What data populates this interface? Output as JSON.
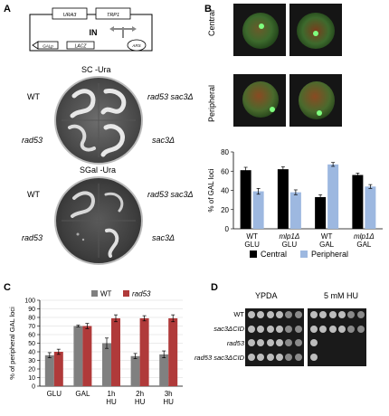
{
  "panels": {
    "A": {
      "letter": "A",
      "plasmid": {
        "ura3": "URA3",
        "trp1": "TRP1",
        "in": "IN",
        "galp": "GALp",
        "lacz": "LACZ",
        "ars": "ARS"
      },
      "plate1": {
        "title": "SC -Ura",
        "wt": "WT",
        "rad53": "rad53",
        "double": "rad53 sac3Δ",
        "sac3": "sac3Δ"
      },
      "plate2": {
        "title": "SGal -Ura",
        "wt": "WT",
        "rad53": "rad53",
        "double": "rad53 sac3Δ",
        "sac3": "sac3Δ"
      }
    },
    "B": {
      "letter": "B",
      "row_central": "Central",
      "row_peripheral": "Peripheral",
      "legend_central": "Central",
      "legend_peripheral": "Peripheral",
      "x_labels": [
        {
          "l1": "WT",
          "l2": "GLU"
        },
        {
          "l1": "mlp1Δ",
          "l2": "GLU"
        },
        {
          "l1": "WT",
          "l2": "GAL"
        },
        {
          "l1": "mlp1Δ",
          "l2": "GAL"
        }
      ]
    },
    "C": {
      "letter": "C"
    },
    "D": {
      "letter": "D",
      "col1": "YPDA",
      "col2": "5 mM HU",
      "rows": [
        "WT",
        "sac3ΔCID",
        "rad53",
        "rad53 sac3ΔCID"
      ],
      "growth_ypda": [
        6,
        6,
        6,
        6
      ],
      "growth_hu": [
        6,
        6,
        1,
        1
      ]
    }
  },
  "colors": {
    "dark": "#000000",
    "light": "#9db8e0",
    "gray": "#808080",
    "red": "#b03a3a"
  },
  "chart_data": [
    {
      "id": "B",
      "type": "bar",
      "categories": [
        "WT GLU",
        "mlp1Δ GLU",
        "WT GAL",
        "mlp1Δ GAL"
      ],
      "series": [
        {
          "name": "Central",
          "values": [
            61,
            62,
            33,
            56
          ],
          "errors": [
            3,
            2.5,
            2.5,
            2
          ]
        },
        {
          "name": "Peripheral",
          "values": [
            39,
            38,
            67,
            44
          ],
          "errors": [
            3,
            2.5,
            2,
            2
          ]
        }
      ],
      "xlabel": "",
      "ylabel": "% of GAL loci",
      "ylim": [
        0,
        80
      ],
      "yticks": [
        0,
        20,
        40,
        60,
        80
      ],
      "legend": "bottom",
      "grid": false
    },
    {
      "id": "C",
      "type": "bar",
      "categories": [
        "GLU",
        "GAL",
        "1h HU",
        "2h HU",
        "3h HU"
      ],
      "series": [
        {
          "name": "WT",
          "values": [
            36,
            70,
            50,
            35,
            37
          ],
          "errors": [
            3,
            1,
            6,
            3,
            4
          ]
        },
        {
          "name": "rad53",
          "values": [
            40,
            70,
            79,
            79,
            79
          ],
          "errors": [
            3,
            3,
            4,
            3,
            4
          ]
        }
      ],
      "xlabel": "",
      "ylabel": "% of peripheral GAL loci",
      "ylim": [
        0,
        100
      ],
      "yticks": [
        0,
        10,
        20,
        30,
        40,
        50,
        60,
        70,
        80,
        90,
        100
      ],
      "legend": "top",
      "grid": true
    }
  ]
}
